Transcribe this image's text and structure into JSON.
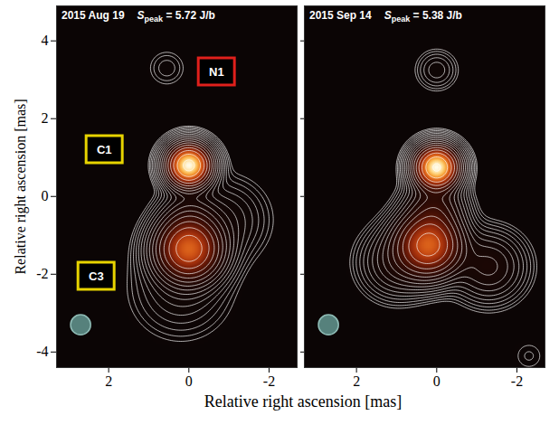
{
  "chart_data": {
    "type": "image",
    "xlabel": "Relative right ascension [mas]",
    "ylabel": "Relative right ascension [mas]",
    "xlim": [
      3.3,
      -2.7
    ],
    "xticks": [
      2,
      0,
      -2
    ],
    "ylim": [
      -4.4,
      4.9
    ],
    "yticks": [
      4,
      2,
      0,
      -2,
      -4
    ],
    "contour_levels": [
      0.02,
      0.028,
      0.04,
      0.057,
      0.08,
      0.113,
      0.16,
      0.226,
      0.32,
      0.453,
      0.64,
      0.905,
      1.28,
      1.81,
      2.56,
      3.62,
      5.12
    ],
    "panels": [
      {
        "title": "2015 Aug 19",
        "peak_symbol": "S",
        "peak_subscript": "peak",
        "peak_label": "= 5.72 J/b",
        "peak": 5.72,
        "components": [
          {
            "x": 0,
            "y": 0.8,
            "flux": 5.72,
            "sigma": 0.3
          },
          {
            "x": 0,
            "y": -1.35,
            "flux": 3.2,
            "sigma": 0.45
          },
          {
            "x": 0,
            "y": -0.5,
            "flux": 0.3,
            "sigma": 0.4
          },
          {
            "x": -0.9,
            "y": -0.6,
            "flux": 0.15,
            "sigma": 0.6
          },
          {
            "x": 0.2,
            "y": -2.4,
            "flux": 0.12,
            "sigma": 0.7
          },
          {
            "x": 0.55,
            "y": 3.3,
            "flux": 0.05,
            "sigma": 0.3
          }
        ],
        "beam": {
          "x": 2.7,
          "y": -3.3,
          "diameter": 0.5
        },
        "annotations": [
          {
            "text": "N1",
            "x": -0.7,
            "y": 3.2,
            "color": "#e0201c"
          },
          {
            "text": "C1",
            "x": 2.1,
            "y": 1.2,
            "color": "#e8d400"
          },
          {
            "text": "C3",
            "x": 2.3,
            "y": -2.05,
            "color": "#e8d400"
          }
        ]
      },
      {
        "title": "2015 Sep 14",
        "peak_symbol": "S",
        "peak_subscript": "peak",
        "peak_label": "= 5.38 J/b",
        "peak": 5.38,
        "tick_labels": "x",
        "components": [
          {
            "x": 0,
            "y": 0.75,
            "flux": 5.38,
            "sigma": 0.3
          },
          {
            "x": 0.2,
            "y": -1.25,
            "flux": 3.0,
            "sigma": 0.45
          },
          {
            "x": 0.05,
            "y": -0.3,
            "flux": 0.6,
            "sigma": 0.4
          },
          {
            "x": 1.0,
            "y": -1.7,
            "flux": 0.3,
            "sigma": 0.5
          },
          {
            "x": -1.3,
            "y": -1.8,
            "flux": 0.35,
            "sigma": 0.5
          },
          {
            "x": 0,
            "y": 3.25,
            "flux": 0.1,
            "sigma": 0.3
          },
          {
            "x": -2.3,
            "y": -4.1,
            "flux": 0.03,
            "sigma": 0.3
          }
        ],
        "beam": {
          "x": 2.7,
          "y": -3.3,
          "diameter": 0.5
        }
      }
    ]
  }
}
